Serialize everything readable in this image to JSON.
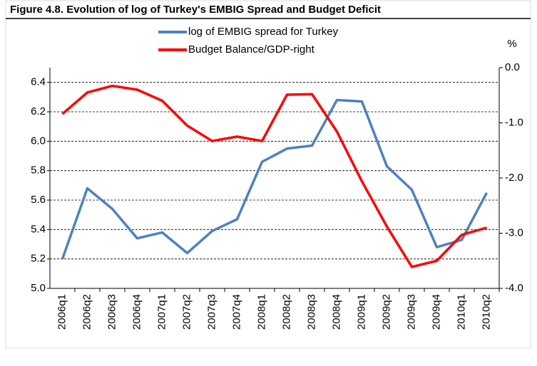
{
  "chart_data": {
    "type": "line",
    "title": "Figure 4.8. Evolution of log of Turkey's EMBIG Spread and Budget Deficit",
    "y2_label": "%",
    "categories": [
      "2006q1",
      "2006q2",
      "2006q3",
      "2006q4",
      "2007q1",
      "2007q2",
      "2007q3",
      "2007q4",
      "2008q1",
      "2008q2",
      "2008q3",
      "2008q4",
      "2009q1",
      "2009q2",
      "2009q3",
      "2009q4",
      "2010q1",
      "2010q2"
    ],
    "series": [
      {
        "name": "log of EMBIG spread for Turkey",
        "color": "#4f81bd",
        "values": [
          5.2,
          5.68,
          5.54,
          5.34,
          5.38,
          5.24,
          5.39,
          5.47,
          5.86,
          5.95,
          5.97,
          6.28,
          6.27,
          5.83,
          5.67,
          5.28,
          5.33,
          5.65
        ]
      },
      {
        "name": "Budget Balance/GDP-right",
        "color": "#ff0000",
        "axis": "y2",
        "values": [
          -0.84,
          -0.45,
          -0.33,
          -0.4,
          -0.6,
          -1.05,
          -1.33,
          -1.25,
          -1.33,
          -0.49,
          -0.48,
          -1.16,
          -2.06,
          -2.88,
          -3.61,
          -3.5,
          -3.03,
          -2.9
        ]
      }
    ],
    "ylim": [
      5.0,
      6.5
    ],
    "yticks": [
      {
        "value": 5.0,
        "label": "5.0"
      },
      5.2,
      5.4,
      5.6,
      5.8,
      {
        "value": 6.0,
        "label": "6.0"
      },
      6.2,
      6.4
    ],
    "y2lim": [
      -4.0,
      0.0
    ],
    "y2ticks": [
      {
        "value": -4.0,
        "label": "-4.0"
      },
      {
        "value": -3.0,
        "label": "-3.0"
      },
      {
        "value": -2.0,
        "label": "-2.0"
      },
      {
        "value": -1.0,
        "label": "-1.0"
      },
      {
        "value": 0.0,
        "label": "0.0"
      }
    ],
    "grid": true
  }
}
